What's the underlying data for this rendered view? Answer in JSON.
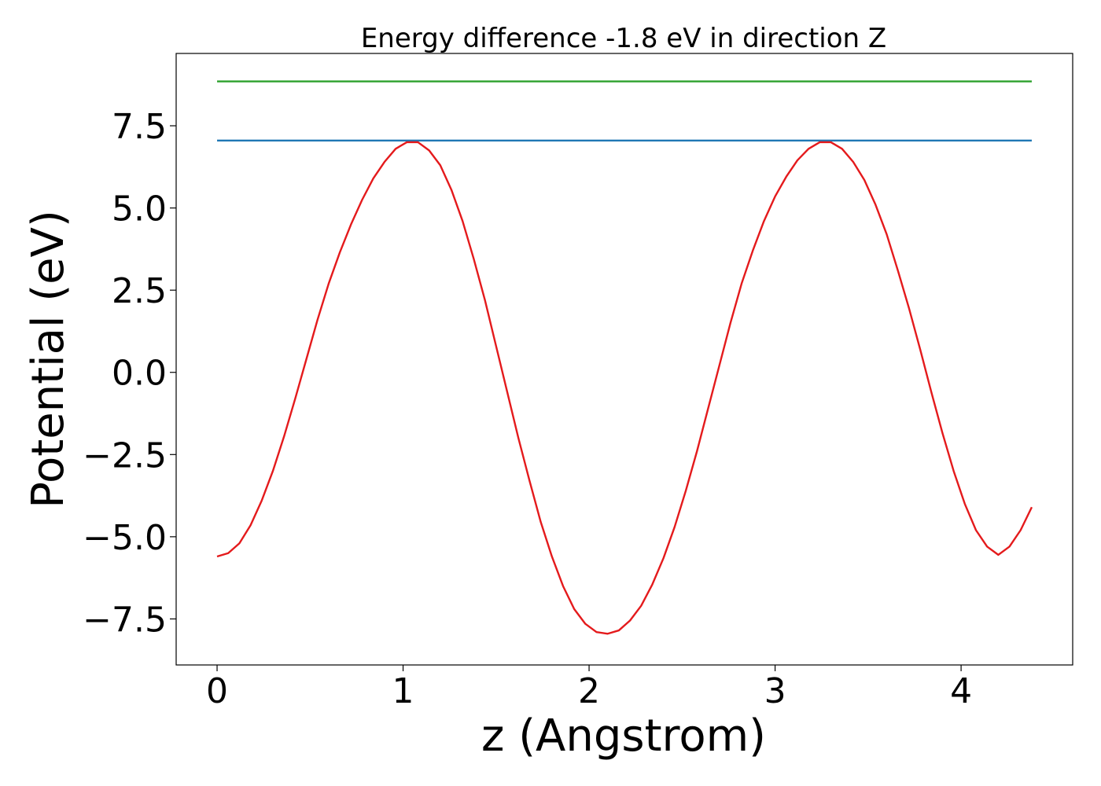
{
  "chart_data": {
    "type": "line",
    "title": "Energy difference -1.8 eV in direction Z",
    "xlabel": "z (Angstrom)",
    "ylabel": "Potential (eV)",
    "xlim": [
      -0.22,
      4.6
    ],
    "ylim": [
      -8.9,
      9.7
    ],
    "xticks": [
      0,
      1,
      2,
      3,
      4
    ],
    "xtick_labels": [
      "0",
      "1",
      "2",
      "3",
      "4"
    ],
    "yticks": [
      -7.5,
      -5.0,
      -2.5,
      0.0,
      2.5,
      5.0,
      7.5
    ],
    "ytick_labels": [
      "−7.5",
      "−5.0",
      "−2.5",
      "0.0",
      "2.5",
      "5.0",
      "7.5"
    ],
    "grid": false,
    "series": [
      {
        "color": "#2ca02c",
        "style": "line",
        "x": [
          0,
          4.38
        ],
        "y": [
          8.85,
          8.85
        ]
      },
      {
        "color": "#1f77b4",
        "style": "line",
        "x": [
          0,
          4.38
        ],
        "y": [
          7.05,
          7.05
        ]
      },
      {
        "color": "#e41a1c",
        "style": "line",
        "x": [
          0.0,
          0.06,
          0.12,
          0.18,
          0.24,
          0.3,
          0.36,
          0.42,
          0.48,
          0.54,
          0.6,
          0.66,
          0.72,
          0.78,
          0.84,
          0.9,
          0.96,
          1.02,
          1.08,
          1.14,
          1.2,
          1.26,
          1.32,
          1.38,
          1.44,
          1.5,
          1.56,
          1.62,
          1.68,
          1.74,
          1.8,
          1.86,
          1.92,
          1.98,
          2.04,
          2.1,
          2.16,
          2.22,
          2.28,
          2.34,
          2.4,
          2.46,
          2.52,
          2.58,
          2.64,
          2.7,
          2.76,
          2.82,
          2.88,
          2.94,
          3.0,
          3.06,
          3.12,
          3.18,
          3.24,
          3.3,
          3.36,
          3.42,
          3.48,
          3.54,
          3.6,
          3.66,
          3.72,
          3.78,
          3.84,
          3.9,
          3.96,
          4.02,
          4.08,
          4.14,
          4.2,
          4.26,
          4.32,
          4.38
        ],
        "y": [
          -5.6,
          -5.5,
          -5.2,
          -4.65,
          -3.9,
          -3.0,
          -1.95,
          -0.8,
          0.4,
          1.6,
          2.7,
          3.65,
          4.5,
          5.25,
          5.9,
          6.4,
          6.8,
          7.0,
          7.0,
          6.75,
          6.3,
          5.55,
          4.6,
          3.45,
          2.2,
          0.8,
          -0.6,
          -2.0,
          -3.3,
          -4.55,
          -5.6,
          -6.5,
          -7.2,
          -7.65,
          -7.9,
          -7.95,
          -7.85,
          -7.55,
          -7.1,
          -6.45,
          -5.65,
          -4.7,
          -3.6,
          -2.4,
          -1.1,
          0.2,
          1.5,
          2.7,
          3.7,
          4.6,
          5.35,
          5.95,
          6.45,
          6.8,
          7.0,
          7.0,
          6.8,
          6.4,
          5.85,
          5.1,
          4.2,
          3.1,
          1.95,
          0.7,
          -0.6,
          -1.85,
          -3.0,
          -4.0,
          -4.8,
          -5.3,
          -5.55,
          -5.3,
          -4.8,
          -4.1
        ]
      }
    ]
  }
}
